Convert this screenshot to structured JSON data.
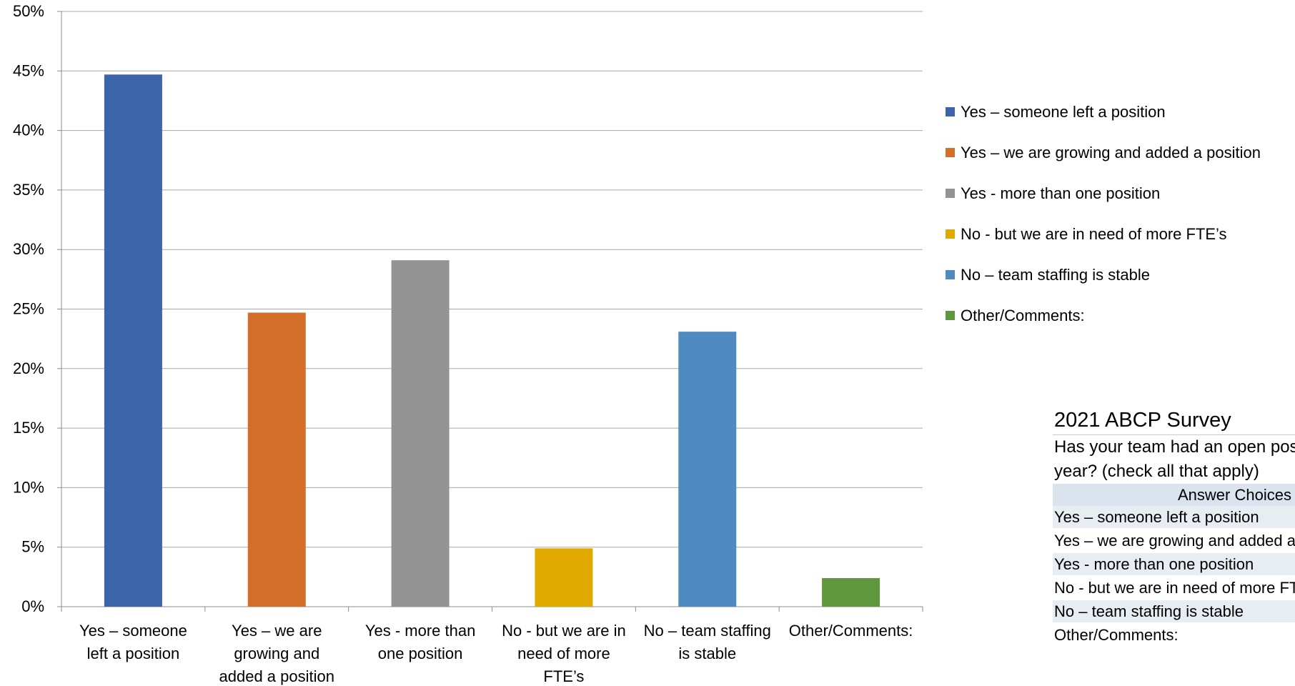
{
  "chart_data": {
    "type": "bar",
    "categories": [
      [
        "Yes – someone",
        "left a position"
      ],
      [
        "Yes – we are",
        "growing and",
        "added a position"
      ],
      [
        "Yes - more than",
        "one position"
      ],
      [
        "No - but we are in",
        "need of more",
        "FTE’s"
      ],
      [
        "No – team staffing",
        "is stable"
      ],
      [
        "Other/Comments:"
      ]
    ],
    "values": [
      44.7,
      24.7,
      29.1,
      4.9,
      23.1,
      2.4
    ],
    "colors": [
      "#3c64ab",
      "#d46e2b",
      "#939393",
      "#e1a900",
      "#4f8bc0",
      "#5f973e"
    ],
    "yticks": [
      "0%",
      "5%",
      "10%",
      "15%",
      "20%",
      "25%",
      "30%",
      "35%",
      "40%",
      "45%",
      "50%"
    ],
    "ylim": [
      0,
      50
    ],
    "grid": true,
    "legend_position": "right",
    "legend": [
      "Yes – someone left a position",
      "Yes – we are growing and added a position",
      "Yes - more than one position",
      "No - but we are in need of more FTE’s",
      "No – team staffing is stable",
      "Other/Comments:"
    ]
  },
  "panel": {
    "title": "2021 ABCP Survey",
    "question_lines": [
      "Has your team had an open position within the last",
      "year? (check all that apply)"
    ],
    "header": "Answer Choices",
    "rows": [
      "Yes – someone left a position",
      "Yes – we are growing and added a position",
      "Yes - more than one position",
      "No - but we are in need of more FTE’s",
      "No – team staffing is stable",
      "Other/Comments:"
    ]
  }
}
